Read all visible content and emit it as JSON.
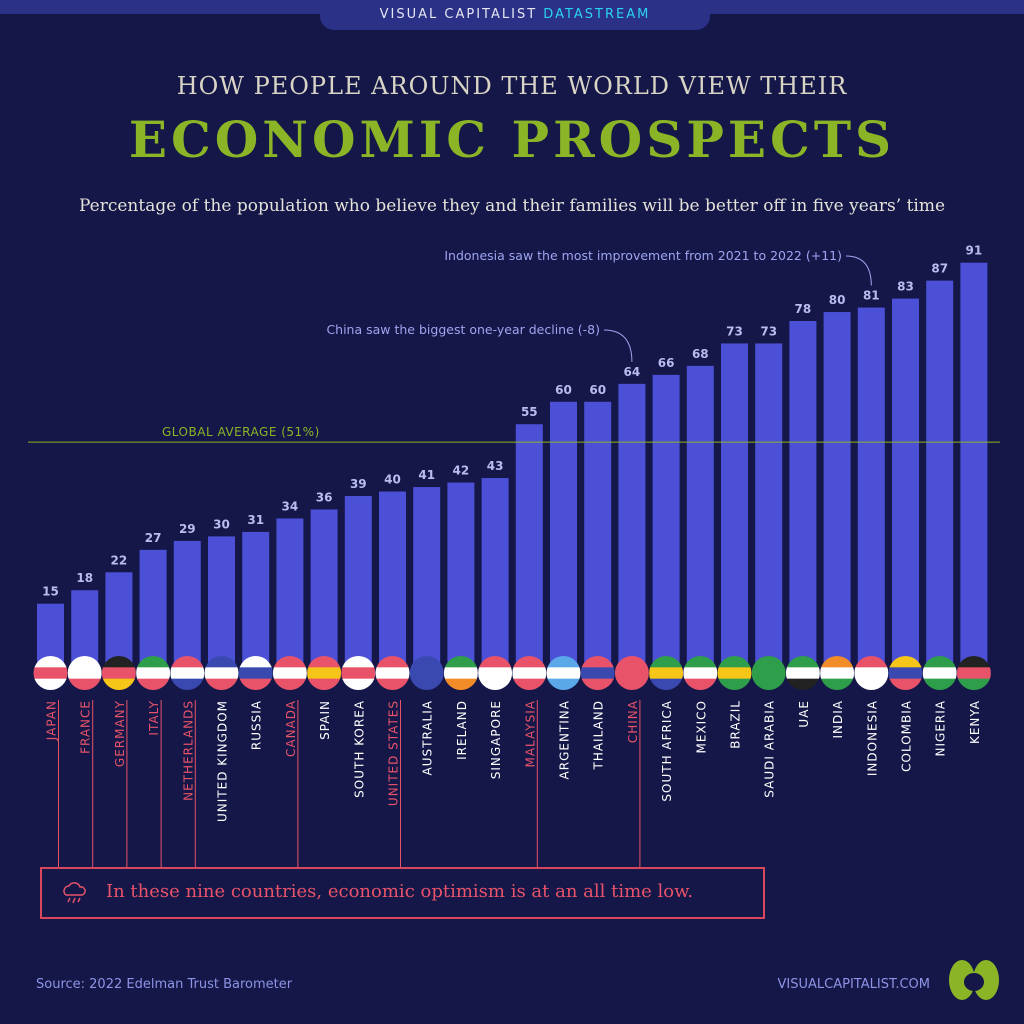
{
  "header": {
    "brand": "VISUAL CAPITALIST",
    "brand_highlight": "DATASTREAM"
  },
  "pretitle": "HOW PEOPLE AROUND THE WORLD VIEW THEIR",
  "title": "ECONOMIC PROSPECTS",
  "subtitle": "Percentage of the population who believe they and their families will be better off in five years’ time",
  "callout": "In these nine countries, economic optimism is at an all time low.",
  "footer": {
    "source": "Source: 2022 Edelman Trust Barometer",
    "site": "VISUALCAPITALIST.COM"
  },
  "colors": {
    "background": "#141747",
    "bar": "#4b50d6",
    "highlight": "#e8536a",
    "average": "#8bb526",
    "annotation": "#9fa4f0"
  },
  "chart_data": {
    "type": "bar",
    "categories": [
      "JAPAN",
      "FRANCE",
      "GERMANY",
      "ITALY",
      "NETHERLANDS",
      "UNITED KINGDOM",
      "RUSSIA",
      "CANADA",
      "SPAIN",
      "SOUTH KOREA",
      "UNITED STATES",
      "AUSTRALIA",
      "IRELAND",
      "SINGAPORE",
      "MALAYSIA",
      "ARGENTINA",
      "THAILAND",
      "CHINA",
      "SOUTH AFRICA",
      "MEXICO",
      "BRAZIL",
      "SAUDI ARABIA",
      "UAE",
      "INDIA",
      "INDONESIA",
      "COLOMBIA",
      "NIGERIA",
      "KENYA"
    ],
    "values": [
      15,
      18,
      22,
      27,
      29,
      30,
      31,
      34,
      36,
      39,
      40,
      41,
      42,
      43,
      55,
      60,
      60,
      64,
      66,
      68,
      73,
      73,
      78,
      80,
      81,
      83,
      87,
      91
    ],
    "all_time_low": [
      "JAPAN",
      "FRANCE",
      "GERMANY",
      "ITALY",
      "NETHERLANDS",
      "CANADA",
      "UNITED STATES",
      "MALAYSIA",
      "CHINA"
    ],
    "flag_colors": [
      [
        "#fff",
        "#e8536a",
        "#fff"
      ],
      [
        "#fff",
        "#fff",
        "#e8536a"
      ],
      [
        "#222",
        "#e8536a",
        "#f5c518"
      ],
      [
        "#2e9e4a",
        "#fff",
        "#e8536a"
      ],
      [
        "#e8536a",
        "#fff",
        "#3a49b0"
      ],
      [
        "#3a49b0",
        "#fff",
        "#e8536a"
      ],
      [
        "#fff",
        "#3a49b0",
        "#e8536a"
      ],
      [
        "#e8536a",
        "#fff",
        "#e8536a"
      ],
      [
        "#e8536a",
        "#f5c518",
        "#e8536a"
      ],
      [
        "#fff",
        "#e8536a",
        "#fff"
      ],
      [
        "#e8536a",
        "#fff",
        "#e8536a"
      ],
      [
        "#3a49b0",
        "#3a49b0",
        "#3a49b0"
      ],
      [
        "#2e9e4a",
        "#fff",
        "#f28c28"
      ],
      [
        "#e8536a",
        "#fff",
        "#fff"
      ],
      [
        "#e8536a",
        "#fff",
        "#e8536a"
      ],
      [
        "#5aa8e8",
        "#fff",
        "#5aa8e8"
      ],
      [
        "#e8536a",
        "#3a49b0",
        "#e8536a"
      ],
      [
        "#e8536a",
        "#e8536a",
        "#e8536a"
      ],
      [
        "#2e9e4a",
        "#f5c518",
        "#3a49b0"
      ],
      [
        "#2e9e4a",
        "#fff",
        "#e8536a"
      ],
      [
        "#2e9e4a",
        "#f5c518",
        "#2e9e4a"
      ],
      [
        "#2e9e4a",
        "#2e9e4a",
        "#2e9e4a"
      ],
      [
        "#2e9e4a",
        "#fff",
        "#222"
      ],
      [
        "#f28c28",
        "#fff",
        "#2e9e4a"
      ],
      [
        "#e8536a",
        "#fff",
        "#fff"
      ],
      [
        "#f5c518",
        "#3a49b0",
        "#e8536a"
      ],
      [
        "#2e9e4a",
        "#fff",
        "#2e9e4a"
      ],
      [
        "#222",
        "#e8536a",
        "#2e9e4a"
      ]
    ],
    "reference_line": {
      "label": "GLOBAL AVERAGE (51%)",
      "value": 51
    },
    "annotations": [
      {
        "category": "CHINA",
        "text": "China saw the biggest one-year decline (-8)"
      },
      {
        "category": "INDONESIA",
        "text": "Indonesia saw the most improvement from 2021 to 2022 (+11)"
      }
    ],
    "ylim": [
      0,
      91
    ],
    "grid": false,
    "legend": "none"
  }
}
